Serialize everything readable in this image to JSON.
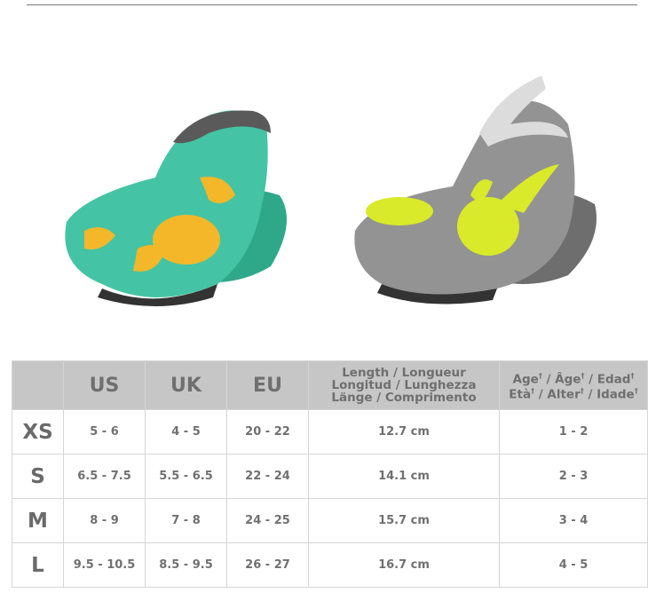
{
  "products": [
    {
      "name": "teal-crab-shoe",
      "colors": {
        "body": "#3fbf9f",
        "accent": "#f5b72a",
        "collar": "#555555"
      }
    },
    {
      "name": "grey-octopus-shoe",
      "colors": {
        "body": "#8e8e8e",
        "accent": "#d8ea2a",
        "collar": "#dddddd"
      }
    }
  ],
  "size_table": {
    "headers": {
      "us": "US",
      "uk": "UK",
      "eu": "EU",
      "length_line1": "Length / Longueur",
      "length_line2": "Longitud / Lunghezza",
      "length_line3": "Länge / Comprimento",
      "age_line1": [
        "Age",
        "Âge",
        "Edad"
      ],
      "age_line2": [
        "Età",
        "Alter",
        "Idade"
      ],
      "dagger": "†",
      "sep": " / "
    },
    "rows": [
      {
        "size": "XS",
        "us": "5 - 6",
        "uk": "4 - 5",
        "eu": "20 - 22",
        "length": "12.7 cm",
        "age": "1 - 2"
      },
      {
        "size": "S",
        "us": "6.5 - 7.5",
        "uk": "5.5 - 6.5",
        "eu": "22 - 24",
        "length": "14.1 cm",
        "age": "2 - 3"
      },
      {
        "size": "M",
        "us": "8 - 9",
        "uk": "7 - 8",
        "eu": "24 - 25",
        "length": "15.7 cm",
        "age": "3 - 4"
      },
      {
        "size": "L",
        "us": "9.5 - 10.5",
        "uk": "8.5 - 9.5",
        "eu": "26 - 27",
        "length": "16.7 cm",
        "age": "4 - 5"
      }
    ]
  }
}
